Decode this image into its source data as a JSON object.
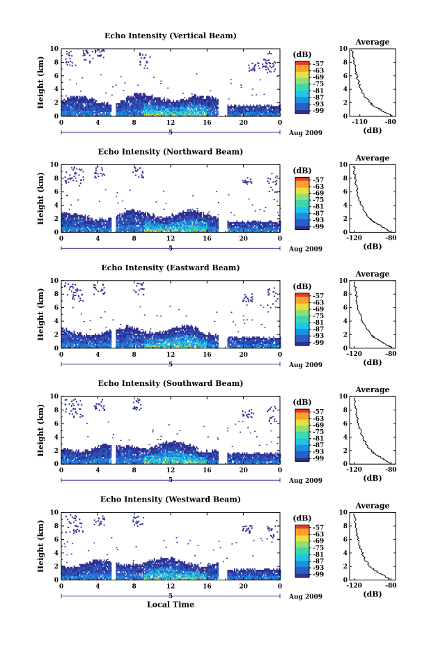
{
  "chart_data": [
    {
      "type": "heatmap",
      "title": "Echo Intensity (Vertical Beam)",
      "ylabel": "Height (km)",
      "xlim": [
        0,
        24
      ],
      "ylim": [
        0,
        10
      ],
      "xticks": [
        "0",
        "4",
        "8",
        "12",
        "16",
        "20",
        "0"
      ],
      "yticks": [
        "0",
        "2",
        "4",
        "6",
        "8",
        "10"
      ],
      "day_label": "5",
      "date_label": "Aug 2009",
      "colorbar": {
        "label": "(dB)",
        "ticks": [
          "-57",
          "-63",
          "-69",
          "-75",
          "-81",
          "-87",
          "-93",
          "-99"
        ]
      },
      "average": {
        "title": "Average",
        "xlabel": "(dB)",
        "xticks": [
          "-110",
          "-80"
        ],
        "xlim": [
          -120,
          -75
        ],
        "yticks": [
          "0",
          "2",
          "4",
          "6",
          "8",
          "10"
        ],
        "profile": [
          [
            0,
            -78
          ],
          [
            0.5,
            -84
          ],
          [
            1,
            -90
          ],
          [
            1.5,
            -96
          ],
          [
            2,
            -100
          ],
          [
            3,
            -105
          ],
          [
            4,
            -109
          ],
          [
            5,
            -111
          ],
          [
            6,
            -113
          ],
          [
            7,
            -114
          ],
          [
            8,
            -116
          ],
          [
            9,
            -117
          ],
          [
            10,
            -118
          ]
        ]
      }
    },
    {
      "type": "heatmap",
      "title": "Echo Intensity (Northward Beam)",
      "ylabel": "Height (km)",
      "xlim": [
        0,
        24
      ],
      "ylim": [
        0,
        10
      ],
      "xticks": [
        "0",
        "4",
        "8",
        "12",
        "16",
        "20",
        "0"
      ],
      "yticks": [
        "0",
        "2",
        "4",
        "6",
        "8",
        "10"
      ],
      "day_label": "5",
      "date_label": "Aug 2009",
      "colorbar": {
        "label": "(dB)",
        "ticks": [
          "-57",
          "-63",
          "-69",
          "-75",
          "-81",
          "-87",
          "-93",
          "-99"
        ]
      },
      "average": {
        "title": "Average",
        "xlabel": "(dB)",
        "xticks": [
          "-120",
          "-80"
        ],
        "xlim": [
          -125,
          -75
        ],
        "yticks": [
          "0",
          "2",
          "4",
          "6",
          "8",
          "10"
        ],
        "profile": [
          [
            0,
            -80
          ],
          [
            0.5,
            -86
          ],
          [
            1,
            -92
          ],
          [
            1.5,
            -98
          ],
          [
            2,
            -103
          ],
          [
            3,
            -108
          ],
          [
            4,
            -112
          ],
          [
            5,
            -115
          ],
          [
            6,
            -117
          ],
          [
            7,
            -118
          ],
          [
            8,
            -119
          ],
          [
            9,
            -120
          ],
          [
            10,
            -120
          ]
        ]
      }
    },
    {
      "type": "heatmap",
      "title": "Echo Intensity (Eastward Beam)",
      "ylabel": "Height (km)",
      "xlim": [
        0,
        24
      ],
      "ylim": [
        0,
        10
      ],
      "xticks": [
        "0",
        "4",
        "8",
        "12",
        "16",
        "20",
        "0"
      ],
      "yticks": [
        "0",
        "2",
        "4",
        "6",
        "8",
        "10"
      ],
      "day_label": "5",
      "date_label": "Aug 2009",
      "colorbar": {
        "label": "(dB)",
        "ticks": [
          "-57",
          "-63",
          "-69",
          "-75",
          "-81",
          "-87",
          "-93",
          "-99"
        ]
      },
      "average": {
        "title": "Average",
        "xlabel": "(dB)",
        "xticks": [
          "-120",
          "-80"
        ],
        "xlim": [
          -125,
          -75
        ],
        "yticks": [
          "0",
          "2",
          "4",
          "6",
          "8",
          "10"
        ],
        "profile": [
          [
            0,
            -78
          ],
          [
            0.5,
            -85
          ],
          [
            1,
            -91
          ],
          [
            1.5,
            -97
          ],
          [
            2,
            -102
          ],
          [
            3,
            -107
          ],
          [
            4,
            -111
          ],
          [
            5,
            -114
          ],
          [
            6,
            -116
          ],
          [
            7,
            -117
          ],
          [
            8,
            -118
          ],
          [
            9,
            -119
          ],
          [
            10,
            -120
          ]
        ]
      }
    },
    {
      "type": "heatmap",
      "title": "Echo Intensity (Southward Beam)",
      "ylabel": "Height (km)",
      "xlim": [
        0,
        24
      ],
      "ylim": [
        0,
        10
      ],
      "xticks": [
        "0",
        "4",
        "8",
        "12",
        "16",
        "20",
        "0"
      ],
      "yticks": [
        "0",
        "2",
        "4",
        "6",
        "8",
        "10"
      ],
      "day_label": "5",
      "date_label": "Aug 2009",
      "colorbar": {
        "label": "(dB)",
        "ticks": [
          "-57",
          "-63",
          "-69",
          "-75",
          "-81",
          "-87",
          "-93",
          "-99"
        ]
      },
      "average": {
        "title": "Average",
        "xlabel": "(dB)",
        "xticks": [
          "-120",
          "-80"
        ],
        "xlim": [
          -125,
          -75
        ],
        "yticks": [
          "0",
          "2",
          "4",
          "6",
          "8",
          "10"
        ],
        "profile": [
          [
            0,
            -79
          ],
          [
            0.5,
            -85
          ],
          [
            1,
            -91
          ],
          [
            1.5,
            -97
          ],
          [
            2,
            -102
          ],
          [
            3,
            -107
          ],
          [
            4,
            -111
          ],
          [
            5,
            -113
          ],
          [
            6,
            -116
          ],
          [
            7,
            -117
          ],
          [
            8,
            -118
          ],
          [
            9,
            -119
          ],
          [
            10,
            -120
          ]
        ]
      }
    },
    {
      "type": "heatmap",
      "title": "Echo Intensity (Westward Beam)",
      "ylabel": "Height (km)",
      "xlim": [
        0,
        24
      ],
      "ylim": [
        0,
        10
      ],
      "xticks": [
        "0",
        "4",
        "8",
        "12",
        "16",
        "20",
        "0"
      ],
      "yticks": [
        "0",
        "2",
        "4",
        "6",
        "8",
        "10"
      ],
      "day_label": "5",
      "date_label": "Aug 2009",
      "xlabel": "Local Time",
      "colorbar": {
        "label": "(dB)",
        "ticks": [
          "-57",
          "-63",
          "-69",
          "-75",
          "-81",
          "-87",
          "-93",
          "-99"
        ]
      },
      "average": {
        "title": "Average",
        "xlabel": "(dB)",
        "xticks": [
          "-120",
          "-80"
        ],
        "xlim": [
          -125,
          -75
        ],
        "yticks": [
          "0",
          "2",
          "4",
          "6",
          "8",
          "10"
        ],
        "profile": [
          [
            0,
            -80
          ],
          [
            0.5,
            -86
          ],
          [
            1,
            -92
          ],
          [
            1.5,
            -98
          ],
          [
            2,
            -103
          ],
          [
            3,
            -108
          ],
          [
            4,
            -111
          ],
          [
            5,
            -114
          ],
          [
            6,
            -116
          ],
          [
            7,
            -117
          ],
          [
            8,
            -118
          ],
          [
            9,
            -119
          ],
          [
            10,
            -120
          ]
        ]
      }
    }
  ],
  "colors": {
    "colormap": [
      "#2e3192",
      "#2a5fc8",
      "#1f90e0",
      "#20c4e8",
      "#3fd6b0",
      "#8fe070",
      "#e8e040",
      "#f8a030",
      "#e83a20"
    ],
    "background": "#ffffff",
    "axis": "#000000"
  }
}
